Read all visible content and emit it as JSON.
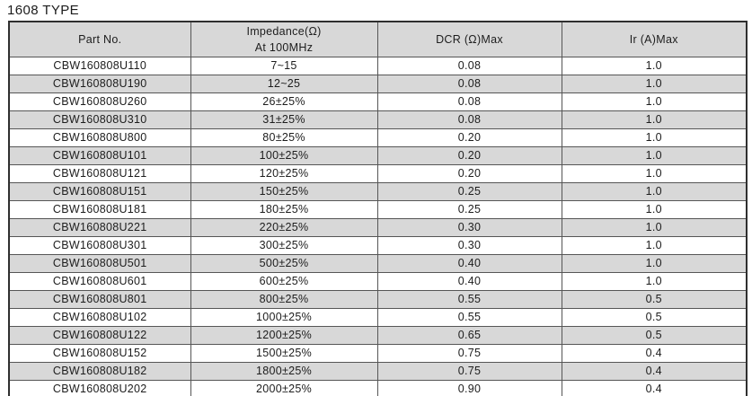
{
  "page": {
    "title": "1608 TYPE"
  },
  "table": {
    "headers": {
      "part_no": "Part No.",
      "impedance_line1": "Impedance(Ω)",
      "impedance_line2": "At 100MHz",
      "dcr": "DCR (Ω)Max",
      "ir": "Ir (A)Max"
    },
    "colors": {
      "row_alt_fill": "#d8d8d8",
      "header_fill": "#d8d8d8",
      "grid_line": "#565656",
      "outer_border": "#2f2f2f",
      "text": "#1d1d1d"
    },
    "rows": [
      {
        "part_no": "CBW160808U110",
        "impedance": "7~15",
        "dcr": "0.08",
        "ir": "1.0"
      },
      {
        "part_no": "CBW160808U190",
        "impedance": "12~25",
        "dcr": "0.08",
        "ir": "1.0"
      },
      {
        "part_no": "CBW160808U260",
        "impedance": "26±25%",
        "dcr": "0.08",
        "ir": "1.0"
      },
      {
        "part_no": "CBW160808U310",
        "impedance": "31±25%",
        "dcr": "0.08",
        "ir": "1.0"
      },
      {
        "part_no": "CBW160808U800",
        "impedance": "80±25%",
        "dcr": "0.20",
        "ir": "1.0"
      },
      {
        "part_no": "CBW160808U101",
        "impedance": "100±25%",
        "dcr": "0.20",
        "ir": "1.0"
      },
      {
        "part_no": "CBW160808U121",
        "impedance": "120±25%",
        "dcr": "0.20",
        "ir": "1.0"
      },
      {
        "part_no": "CBW160808U151",
        "impedance": "150±25%",
        "dcr": "0.25",
        "ir": "1.0"
      },
      {
        "part_no": "CBW160808U181",
        "impedance": "180±25%",
        "dcr": "0.25",
        "ir": "1.0"
      },
      {
        "part_no": "CBW160808U221",
        "impedance": "220±25%",
        "dcr": "0.30",
        "ir": "1.0"
      },
      {
        "part_no": "CBW160808U301",
        "impedance": "300±25%",
        "dcr": "0.30",
        "ir": "1.0"
      },
      {
        "part_no": "CBW160808U501",
        "impedance": "500±25%",
        "dcr": "0.40",
        "ir": "1.0"
      },
      {
        "part_no": "CBW160808U601",
        "impedance": "600±25%",
        "dcr": "0.40",
        "ir": "1.0"
      },
      {
        "part_no": "CBW160808U801",
        "impedance": "800±25%",
        "dcr": "0.55",
        "ir": "0.5"
      },
      {
        "part_no": "CBW160808U102",
        "impedance": "1000±25%",
        "dcr": "0.55",
        "ir": "0.5"
      },
      {
        "part_no": "CBW160808U122",
        "impedance": "1200±25%",
        "dcr": "0.65",
        "ir": "0.5"
      },
      {
        "part_no": "CBW160808U152",
        "impedance": "1500±25%",
        "dcr": "0.75",
        "ir": "0.4"
      },
      {
        "part_no": "CBW160808U182",
        "impedance": "1800±25%",
        "dcr": "0.75",
        "ir": "0.4"
      },
      {
        "part_no": "CBW160808U202",
        "impedance": "2000±25%",
        "dcr": "0.90",
        "ir": "0.4"
      }
    ]
  }
}
